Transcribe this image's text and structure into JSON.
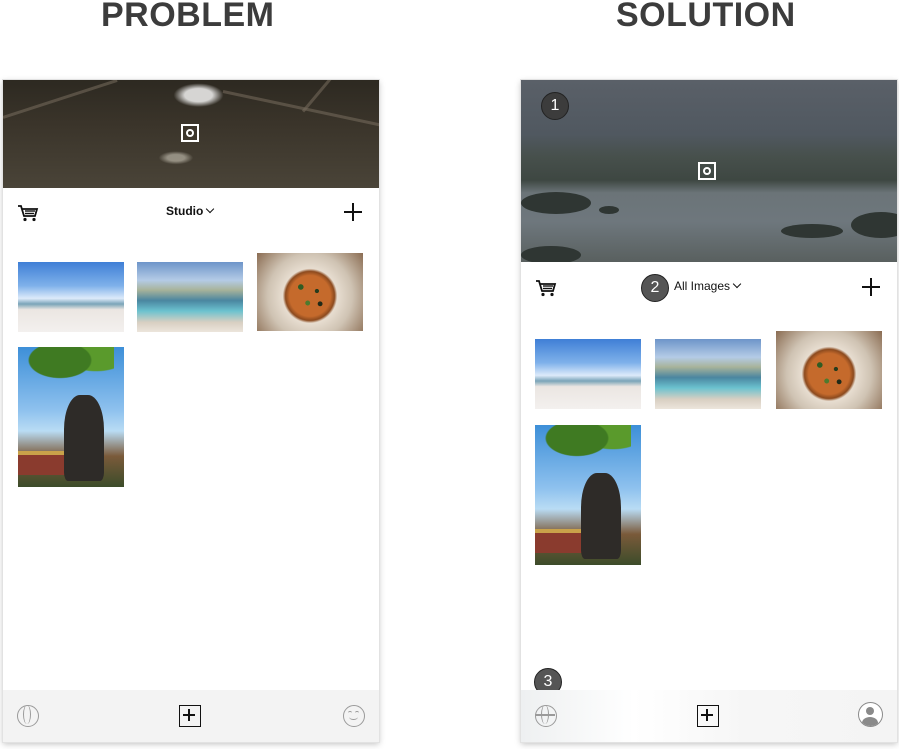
{
  "headings": {
    "problem": "PROBLEM",
    "solution": "SOLUTION"
  },
  "problem": {
    "filter_label": "Studio",
    "thumbnails": [
      "beach-photo",
      "beach-photo",
      "pizza-photo",
      "dinosaur-photo"
    ]
  },
  "solution": {
    "filter_label": "All Images",
    "markers": {
      "m1": "1",
      "m2": "2",
      "m3": "3"
    },
    "thumbnails": [
      "beach-photo",
      "beach-photo",
      "pizza-photo",
      "dinosaur-photo"
    ]
  },
  "icons": [
    "camera-icon",
    "cart-icon",
    "chevron-down-icon",
    "plus-icon",
    "globe-icon",
    "add-square-icon",
    "smile-icon",
    "profile-icon"
  ]
}
